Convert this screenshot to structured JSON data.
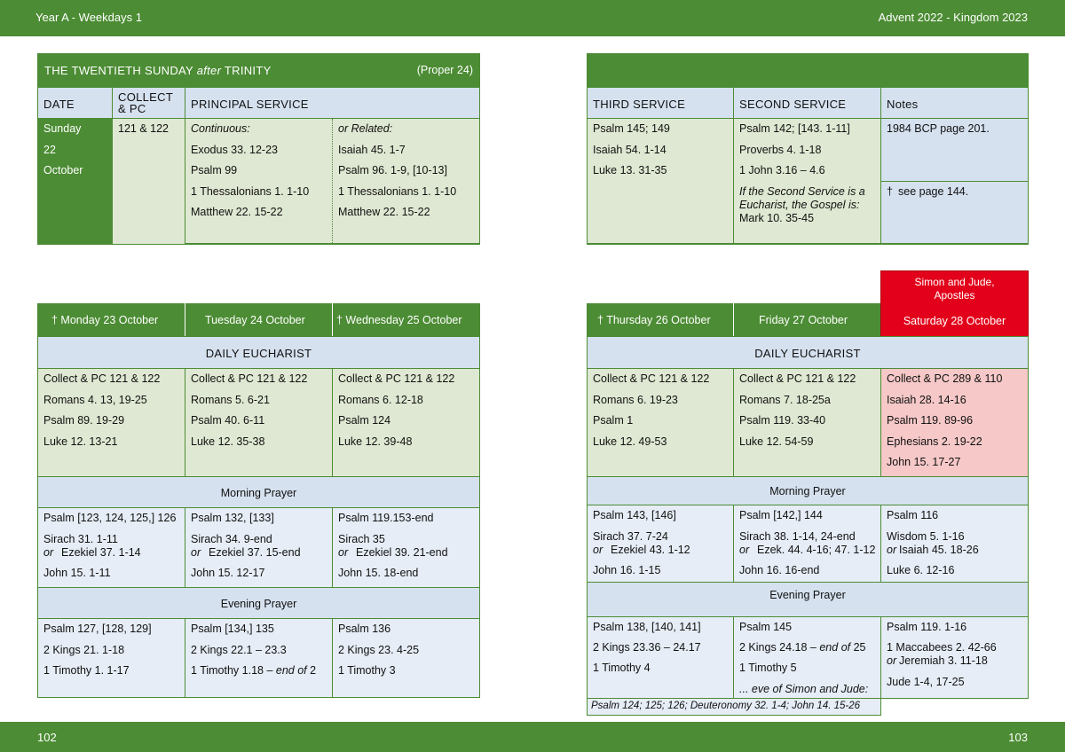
{
  "header": {
    "left": "Year A - Weekdays 1",
    "right": "Advent  2022 - Kingdom 2023"
  },
  "footer": {
    "left": "102",
    "right": "103"
  },
  "sunday": {
    "title_pre": "THE TWENTIETH SUNDAY ",
    "title_it": "after",
    "title_post": " TRINITY",
    "proper": "(Proper 24)",
    "col_date": "DATE",
    "col_collect": "COLLECT\n& PC",
    "col_principal": "PRINCIPAL SERVICE",
    "date_lines": [
      "Sunday",
      "22",
      "October"
    ],
    "collect": "121 & 122",
    "continuous": [
      "Continuous:",
      "Exodus 33. 12-23",
      "Psalm 99",
      "1 Thessalonians 1. 1-10",
      "Matthew 22. 15-22"
    ],
    "related": [
      "or Related:",
      "Isaiah 45. 1-7",
      "Psalm 96. 1-9, [10-13]",
      "1 Thessalonians 1. 1-10",
      "Matthew 22. 15-22"
    ],
    "col_third": "THIRD SERVICE",
    "col_second": "SECOND SERVICE",
    "col_notes": "Notes",
    "third": [
      "Psalm 145; 149",
      "Isaiah 54. 1-14",
      "Luke 13. 31-35"
    ],
    "second": [
      "Psalm 142; [143. 1-11]",
      "Proverbs 4. 1-18",
      "1 John 3.16 – 4.6"
    ],
    "second_note": [
      "If the Second Service is a",
      "Eucharist, the Gospel is:"
    ],
    "second_gospel": "Mark 10. 35-45",
    "notes1": "1984 BCP page 201.",
    "notes2_dagger": "†",
    "notes2": "see page 144."
  },
  "left_week": {
    "days": [
      "†  Monday 23 October",
      "Tuesday 24 October",
      "†  Wednesday 25 October"
    ],
    "eucharist_title": "DAILY EUCHARIST",
    "eucharist": [
      [
        "Collect & PC 121 & 122",
        "Romans 4. 13, 19-25",
        "Psalm 89. 19-29",
        "Luke 12. 13-21"
      ],
      [
        "Collect & PC 121 & 122",
        "Romans 5. 6-21",
        "Psalm 40. 6-11",
        "Luke 12. 35-38"
      ],
      [
        "Collect & PC 121 & 122",
        "Romans 6. 12-18",
        "Psalm 124",
        "Luke 12. 39-48"
      ]
    ],
    "mp_title": "Morning Prayer",
    "mp": [
      {
        "psalm": "Psalm [123, 124, 125,] 126",
        "l1": "Sirach 31. 1-11",
        "or": "or",
        "l2": "Ezekiel  37. 1-14",
        "gospel": "John 15. 1-11"
      },
      {
        "psalm": "Psalm 132, [133]",
        "l1": "Sirach 34. 9-end",
        "or": "or",
        "l2": "Ezekiel  37. 15-end",
        "gospel": "John 15. 12-17"
      },
      {
        "psalm": "Psalm 119.153-end",
        "l1": "Sirach 35",
        "or": "or",
        "l2": "Ezekiel 39. 21-end",
        "gospel": "John 15. 18-end"
      }
    ],
    "ep_title": "Evening Prayer",
    "ep": [
      {
        "psalm": "Psalm 127, [128, 129]",
        "ot": "2 Kings 21. 1-18",
        "nt": "1 Timothy 1. 1-17",
        "nt_it": "",
        "nt_post": ""
      },
      {
        "psalm": "Psalm [134,] 135",
        "ot": "2 Kings 22.1 – 23.3",
        "nt": "1 Timothy 1.18 – ",
        "nt_it": "end of",
        "nt_post": " 2"
      },
      {
        "psalm": "Psalm 136",
        "ot": "2 Kings 23. 4-25",
        "nt": "1 Timothy 3",
        "nt_it": "",
        "nt_post": ""
      }
    ]
  },
  "right_week": {
    "feast": [
      "Simon and Jude,",
      "Apostles"
    ],
    "days": [
      "†  Thursday 26 October",
      "Friday 27 October",
      "Saturday 28 October"
    ],
    "eucharist_title": "DAILY EUCHARIST",
    "eucharist": [
      [
        "Collect & PC 121 & 122",
        "Romans 6. 19-23",
        "Psalm 1",
        "Luke 12. 49-53"
      ],
      [
        "Collect & PC 121 & 122",
        "Romans 7. 18-25a",
        "Psalm 119. 33-40",
        "Luke 12. 54-59"
      ],
      [
        "Collect & PC 289 & 110",
        "Isaiah 28. 14-16",
        "Psalm 119. 89-96",
        "Ephesians 2. 19-22",
        "John 15. 17-27"
      ]
    ],
    "mp_title": "Morning Prayer",
    "mp": [
      {
        "psalm": "Psalm 143, [146]",
        "l1": "Sirach 37. 7-24",
        "or": "or",
        "l2": "Ezekiel  43. 1-12",
        "gospel": "John 16. 1-15"
      },
      {
        "psalm": "Psalm [142,] 144",
        "l1": "Sirach 38. 1-14, 24-end",
        "or": "or",
        "l2": "Ezek. 44. 4-16; 47. 1-12",
        "gospel": "John 16. 16-end"
      },
      {
        "psalm": "Psalm 116",
        "l1": "Wisdom 5. 1-16",
        "or": "or",
        "l2": "Isaiah 45. 18-26",
        "gospel": "Luke 6. 12-16"
      }
    ],
    "ep_title": "Evening Prayer",
    "ep": [
      {
        "psalm": "Psalm 138, [140, 141]",
        "ot": "2 Kings 23.36 – 24.17",
        "nt": "1 Timothy 4"
      },
      {
        "psalm": "Psalm 145",
        "ot": "2 Kings 24.18 – ",
        "ot_it": "end of",
        "ot_post": " 25",
        "nt": "1 Timothy 5",
        "eve": "... eve of Simon and Jude:"
      },
      {
        "psalm": "Psalm 119. 1-16",
        "ot": "1 Maccabees 2. 42-66",
        "or": "or",
        "ot2": "Jeremiah 3. 11-18",
        "nt": "Jude 1-4, 17-25"
      }
    ],
    "eve_readings": "Psalm 124; 125; 126; Deuteronomy 32. 1-4; John 14. 15-26"
  }
}
